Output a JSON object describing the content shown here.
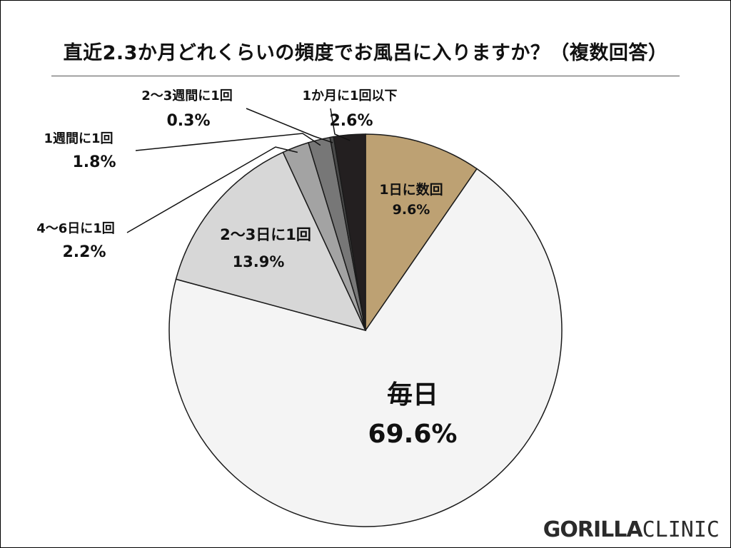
{
  "chart_data": {
    "type": "pie",
    "title": "直近2.3か月どれくらいの頻度でお風呂に入りますか？（複数回答）",
    "start_angle": "12 o'clock",
    "direction": "clockwise",
    "slices": [
      {
        "label": "1日に数回",
        "value": 9.6,
        "value_label": "9.6%",
        "color": "#bda173",
        "label_placement": "inside"
      },
      {
        "label": "毎日",
        "value": 69.6,
        "value_label": "69.6%",
        "color": "#f4f4f4",
        "label_placement": "inside"
      },
      {
        "label": "2〜3日に1回",
        "value": 13.9,
        "value_label": "13.9%",
        "color": "#d7d7d7",
        "label_placement": "inside"
      },
      {
        "label": "4〜6日に1回",
        "value": 2.2,
        "value_label": "2.2%",
        "color": "#a3a3a3",
        "label_placement": "outside"
      },
      {
        "label": "1週間に1回",
        "value": 1.8,
        "value_label": "1.8%",
        "color": "#777777",
        "label_placement": "outside"
      },
      {
        "label": "2〜3週間に1回",
        "value": 0.3,
        "value_label": "0.3%",
        "color": "#4a4a4a",
        "label_placement": "outside"
      },
      {
        "label": "1か月に1回以下",
        "value": 2.6,
        "value_label": "2.6%",
        "color": "#231f20",
        "label_placement": "outside"
      }
    ]
  },
  "branding": {
    "logo_bold": "GORILLA",
    "logo_light": "CLINIC"
  }
}
